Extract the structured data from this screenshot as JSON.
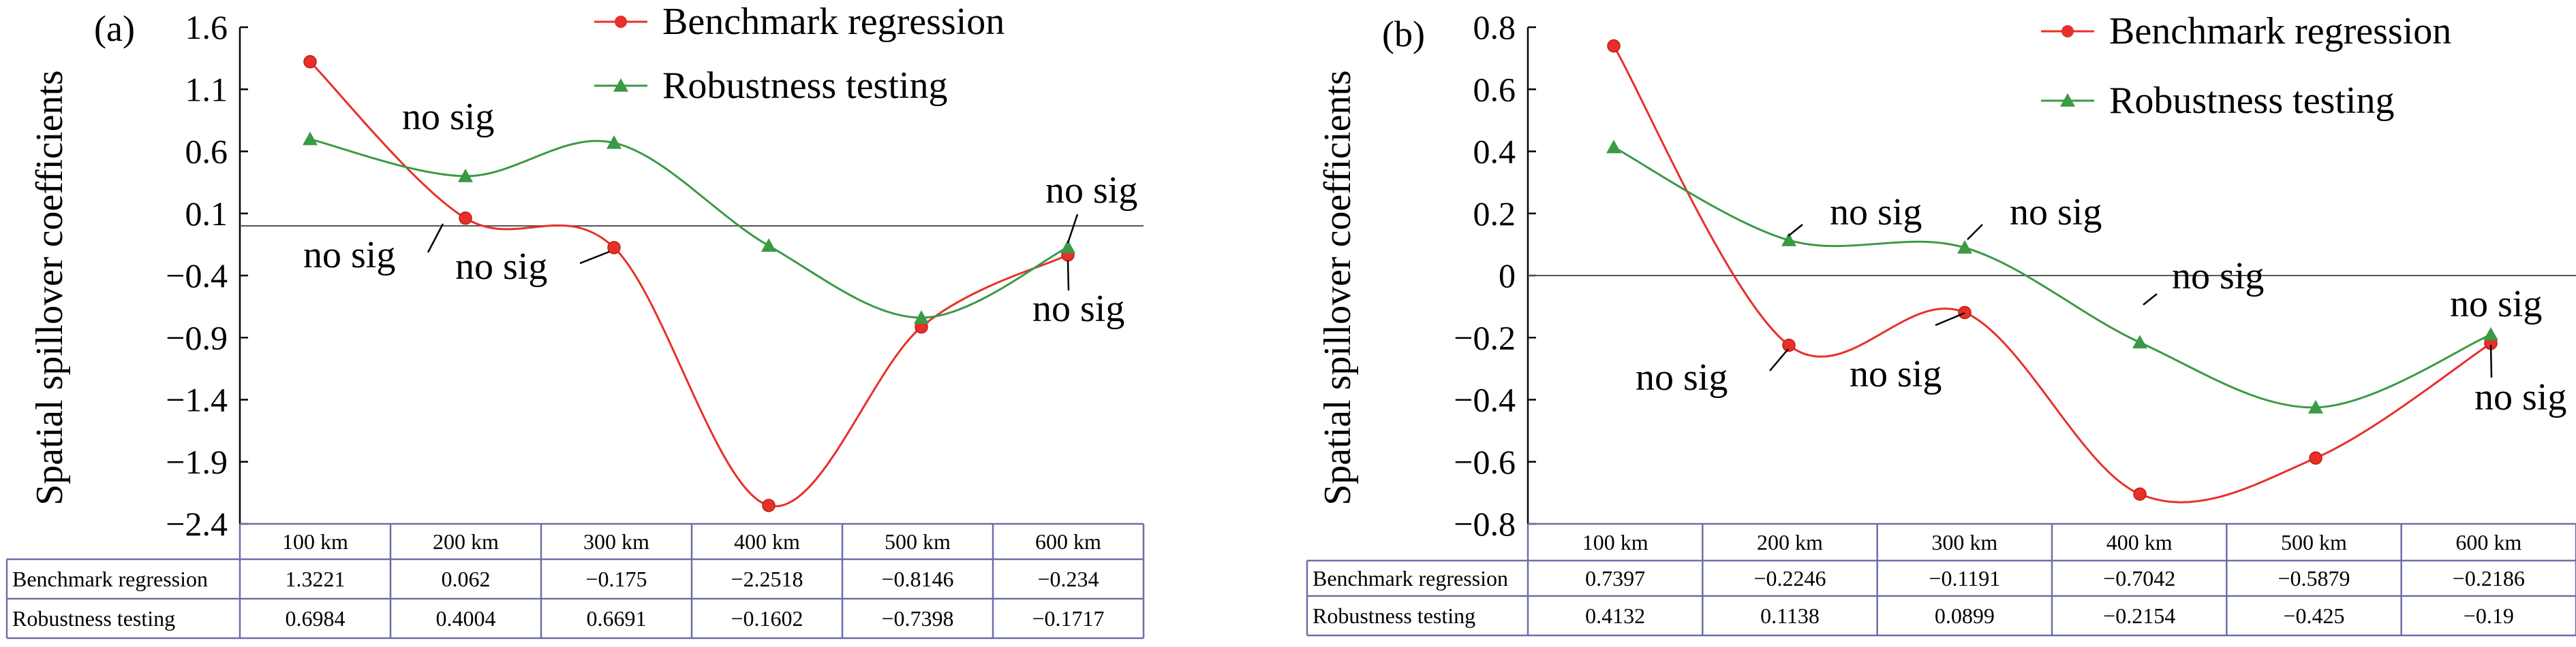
{
  "chart_data": [
    {
      "type": "line",
      "panel_label": "(a)",
      "ylabel": "Spatial spillover coefficients",
      "categories": [
        "100 km",
        "200 km",
        "300 km",
        "400 km",
        "500 km",
        "600 km"
      ],
      "ylim": [
        -2.4,
        1.6
      ],
      "yticks": [
        "1.6",
        "1.1",
        "0.6",
        "0.1",
        "−0.4",
        "−0.9",
        "−1.4",
        "−1.9",
        "−2.4"
      ],
      "ytick_values": [
        1.6,
        1.1,
        0.6,
        0.1,
        -0.4,
        -0.9,
        -1.4,
        -1.9,
        -2.4
      ],
      "reference_line": 0,
      "legend_position": "top-right",
      "series": [
        {
          "name": "Benchmark regression",
          "values": [
            1.3221,
            0.062,
            -0.175,
            -2.2518,
            -0.8146,
            -0.234
          ],
          "labels": [
            "1.3221",
            "0.062",
            "−0.175",
            "−2.2518",
            "−0.8146",
            "−0.234"
          ],
          "color": "#e8302a",
          "marker": "circle"
        },
        {
          "name": "Robustness testing",
          "values": [
            0.6984,
            0.4004,
            0.6691,
            -0.1602,
            -0.7398,
            -0.1717
          ],
          "labels": [
            "0.6984",
            "0.4004",
            "0.6691",
            "−0.1602",
            "−0.7398",
            "−0.1717"
          ],
          "color": "#3a9a45",
          "marker": "triangle"
        }
      ],
      "annotations": [
        {
          "text": "no sig",
          "series": 1,
          "point": 1
        },
        {
          "text": "no sig",
          "series": 0,
          "point": 1
        },
        {
          "text": "no sig",
          "series": 0,
          "point": 2
        },
        {
          "text": "no sig",
          "series": 1,
          "point": 5
        },
        {
          "text": "no sig",
          "series": 0,
          "point": 5
        }
      ]
    },
    {
      "type": "line",
      "panel_label": "(b)",
      "ylabel": "Spatial spillover coefficients",
      "categories": [
        "100 km",
        "200 km",
        "300 km",
        "400 km",
        "500 km",
        "600 km"
      ],
      "ylim": [
        -0.8,
        0.8
      ],
      "yticks": [
        "0.8",
        "0.6",
        "0.4",
        "0.2",
        "0",
        "−0.2",
        "−0.4",
        "−0.6",
        "−0.8"
      ],
      "ytick_values": [
        0.8,
        0.6,
        0.4,
        0.2,
        0,
        -0.2,
        -0.4,
        -0.6,
        -0.8
      ],
      "reference_line": 0,
      "legend_position": "top-right",
      "series": [
        {
          "name": "Benchmark regression",
          "values": [
            0.7397,
            -0.2246,
            -0.1191,
            -0.7042,
            -0.5879,
            -0.2186
          ],
          "labels": [
            "0.7397",
            "−0.2246",
            "−0.1191",
            "−0.7042",
            "−0.5879",
            "−0.2186"
          ],
          "color": "#e8302a",
          "marker": "circle"
        },
        {
          "name": "Robustness testing",
          "values": [
            0.4132,
            0.1138,
            0.0899,
            -0.2154,
            -0.425,
            -0.19
          ],
          "labels": [
            "0.4132",
            "0.1138",
            "0.0899",
            "−0.2154",
            "−0.425",
            "−0.19"
          ],
          "color": "#3a9a45",
          "marker": "triangle"
        }
      ],
      "annotations": [
        {
          "text": "no sig",
          "series": 1,
          "point": 1
        },
        {
          "text": "no sig",
          "series": 1,
          "point": 2
        },
        {
          "text": "no sig",
          "series": 0,
          "point": 1
        },
        {
          "text": "no sig",
          "series": 0,
          "point": 2
        },
        {
          "text": "no sig",
          "series": 1,
          "point": 3
        },
        {
          "text": "no sig",
          "series": 1,
          "point": 5
        },
        {
          "text": "no sig",
          "series": 0,
          "point": 5
        }
      ]
    }
  ]
}
